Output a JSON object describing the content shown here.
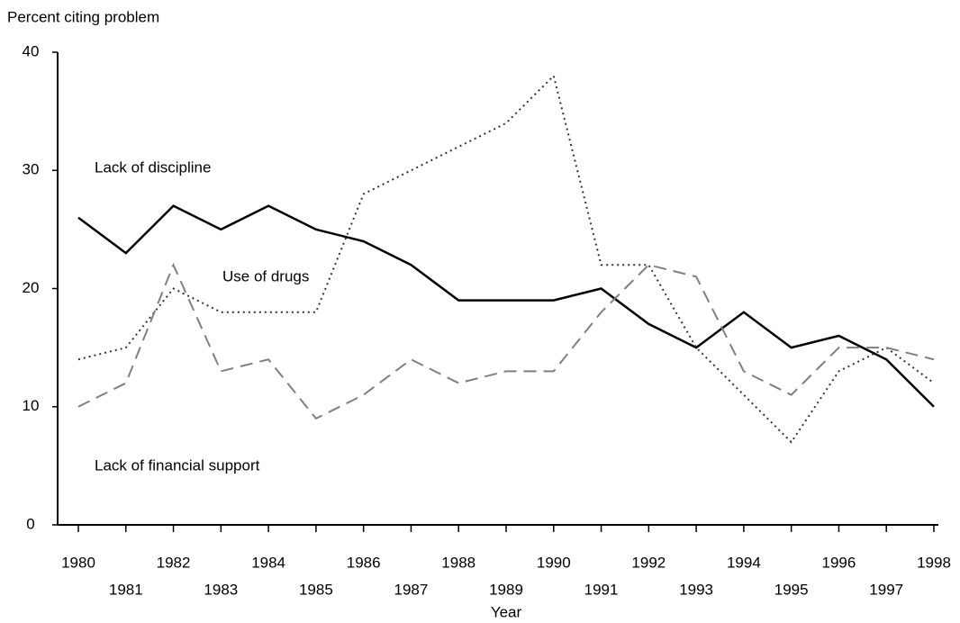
{
  "chart_data": {
    "type": "line",
    "y_label": "Percent citing problem",
    "x_label": "Year",
    "categories": [
      "1980",
      "1981",
      "1982",
      "1983",
      "1984",
      "1985",
      "1986",
      "1987",
      "1988",
      "1989",
      "1990",
      "1991",
      "1992",
      "1993",
      "1994",
      "1995",
      "1996",
      "1997",
      "1998"
    ],
    "series": [
      {
        "name": "Lack of discipline",
        "color": "#000000",
        "dash": "solid",
        "values": [
          26,
          23,
          27,
          25,
          27,
          25,
          24,
          22,
          19,
          19,
          19,
          20,
          17,
          15,
          18,
          15,
          16,
          14,
          10
        ]
      },
      {
        "name": "Use of drugs",
        "color": "#333333",
        "dash": "dotted",
        "values": [
          14,
          15,
          20,
          18,
          18,
          18,
          28,
          30,
          32,
          34,
          38,
          22,
          22,
          15,
          11,
          7,
          13,
          15,
          12
        ]
      },
      {
        "name": "Lack of financial support",
        "color": "#808080",
        "dash": "dashed",
        "values": [
          10,
          12,
          22,
          13,
          14,
          9,
          11,
          14,
          12,
          13,
          13,
          18,
          22,
          21,
          13,
          11,
          15,
          15,
          14
        ]
      }
    ],
    "ylim": [
      0,
      40
    ],
    "yticks": [
      0,
      10,
      20,
      30,
      40
    ],
    "grid": false
  }
}
